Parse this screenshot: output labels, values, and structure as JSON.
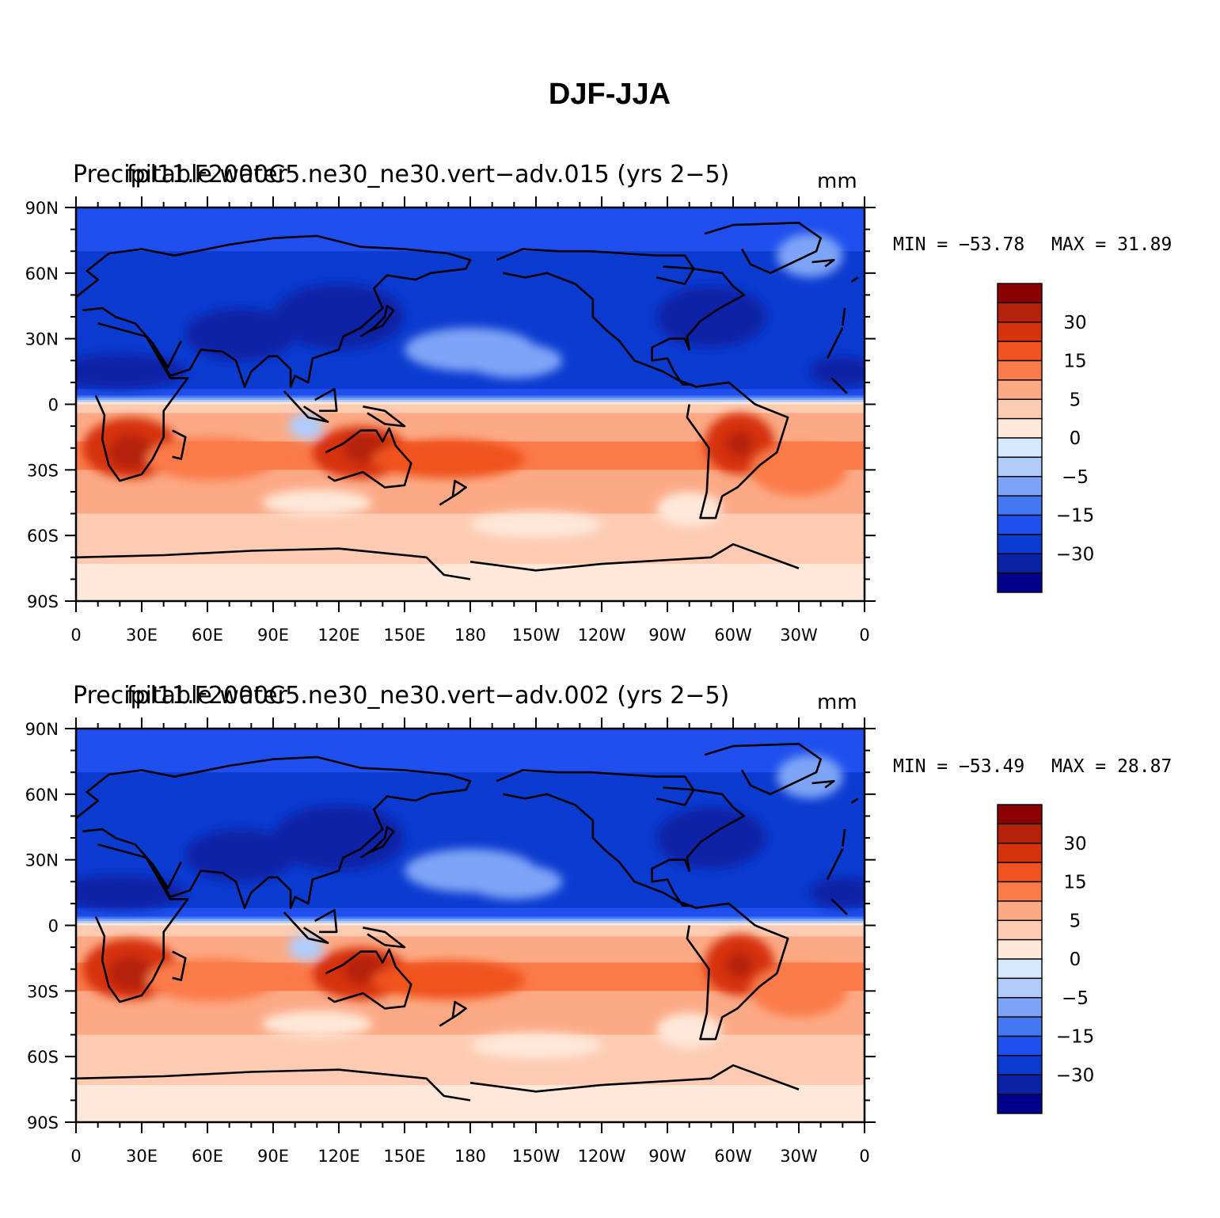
{
  "title": "DJF-JJA",
  "colors": {
    "land_outline": "#000000",
    "frame": "#000000",
    "levels": [
      "#00008b",
      "#0a23a6",
      "#0c3bd0",
      "#1f4fee",
      "#4478f3",
      "#7ea4f7",
      "#b1ccfa",
      "#d6e8fd",
      "#fee8d9",
      "#fdcbb2",
      "#fcaa86",
      "#fb7b4a",
      "#f0531f",
      "#d6330c",
      "#b5220b",
      "#8b0000"
    ]
  },
  "colorbar": {
    "labels": [
      "30",
      "15",
      "5",
      "0",
      "−5",
      "−15",
      "−30"
    ]
  },
  "axes": {
    "lat_labels": [
      "90N",
      "60N",
      "30N",
      "0",
      "30S",
      "60S",
      "90S"
    ],
    "lon_labels": [
      "0",
      "30E",
      "60E",
      "90E",
      "120E",
      "150E",
      "180",
      "150W",
      "120W",
      "90W",
      "60W",
      "30W",
      "0"
    ]
  },
  "panels": [
    {
      "overlap_title_a": "Precipitable water",
      "overlap_title_b": "fpl11.F2000C5.ne30_ne30.vert−adv.015 (yrs 2−5)",
      "units": "mm",
      "min_text": "MIN = −53.78",
      "max_text": "MAX =   31.89"
    },
    {
      "overlap_title_a": "Precipitable water",
      "overlap_title_b": "fpl11.F2000C5.ne30_ne30.vert−adv.002 (yrs 2−5)",
      "units": "mm",
      "min_text": "MIN = −53.49",
      "max_text": "MAX =   28.87"
    }
  ],
  "chart_data": [
    {
      "type": "heatmap",
      "title": "fpl11.F2000C5.ne30_ne30.vert−adv.015 (yrs 2−5)",
      "variable": "Precipitable water",
      "units": "mm",
      "season_difference": "DJF-JJA",
      "min": -53.78,
      "max": 31.89,
      "x_range": [
        0,
        360
      ],
      "y_range": [
        -90,
        90
      ],
      "approx_zonal_profile": [
        {
          "lat": 85,
          "value": -20
        },
        {
          "lat": 70,
          "value": -22
        },
        {
          "lat": 50,
          "value": -28
        },
        {
          "lat": 30,
          "value": -26
        },
        {
          "lat": 15,
          "value": -30
        },
        {
          "lat": 5,
          "value": -20
        },
        {
          "lat": 0,
          "value": 3
        },
        {
          "lat": -10,
          "value": 8
        },
        {
          "lat": -25,
          "value": 12
        },
        {
          "lat": -40,
          "value": 6
        },
        {
          "lat": -60,
          "value": 4
        },
        {
          "lat": -80,
          "value": 1
        }
      ]
    },
    {
      "type": "heatmap",
      "title": "fpl11.F2000C5.ne30_ne30.vert−adv.002 (yrs 2−5)",
      "variable": "Precipitable water",
      "units": "mm",
      "season_difference": "DJF-JJA",
      "min": -53.49,
      "max": 28.87,
      "x_range": [
        0,
        360
      ],
      "y_range": [
        -90,
        90
      ],
      "approx_zonal_profile": [
        {
          "lat": 85,
          "value": -20
        },
        {
          "lat": 70,
          "value": -22
        },
        {
          "lat": 50,
          "value": -28
        },
        {
          "lat": 30,
          "value": -27
        },
        {
          "lat": 15,
          "value": -30
        },
        {
          "lat": 5,
          "value": -18
        },
        {
          "lat": 0,
          "value": 2
        },
        {
          "lat": -10,
          "value": 8
        },
        {
          "lat": -25,
          "value": 12
        },
        {
          "lat": -40,
          "value": 6
        },
        {
          "lat": -60,
          "value": 4
        },
        {
          "lat": -80,
          "value": 1
        }
      ]
    }
  ]
}
